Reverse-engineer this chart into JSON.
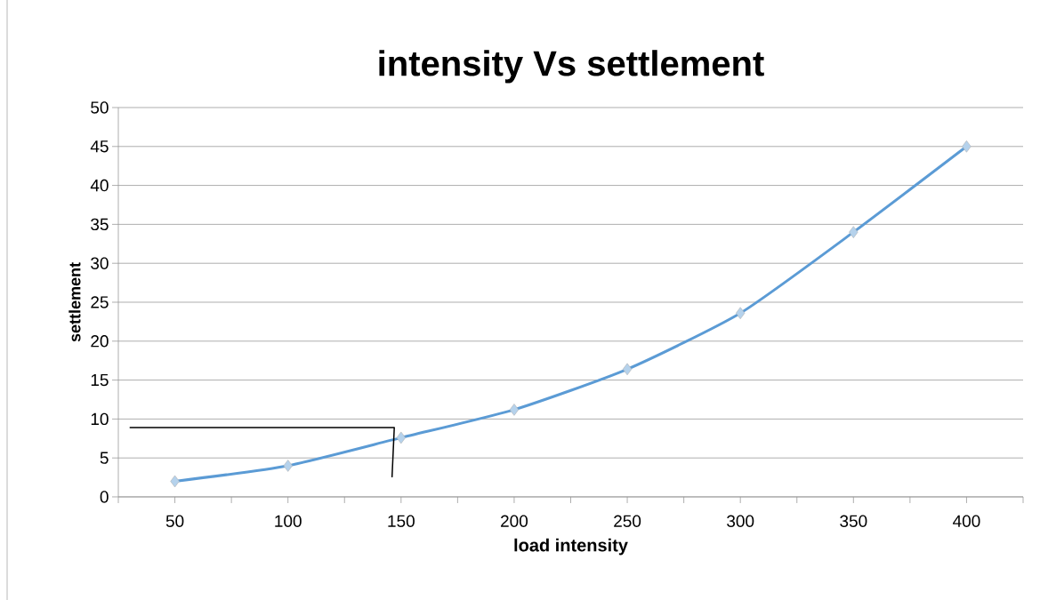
{
  "chart_data": {
    "type": "line",
    "title": "intensity Vs settlement",
    "xlabel": "load intensity",
    "ylabel": "settlement",
    "series": [
      {
        "color": "#5b9bd5",
        "marker": "diamond",
        "x": [
          50,
          100,
          150,
          200,
          250,
          300,
          350,
          400
        ],
        "values": [
          2,
          4,
          7.6,
          11.2,
          16.4,
          23.6,
          34,
          45
        ]
      },
      {
        "color": "#000000",
        "marker": "none",
        "x": [
          30,
          147,
          146
        ],
        "values": [
          8.9,
          8.9,
          2.5
        ]
      }
    ],
    "xlim": [
      25,
      425
    ],
    "xticks": [
      {
        "value": 25,
        "label": null
      },
      50,
      {
        "value": 75,
        "label": null
      },
      100,
      {
        "value": 125,
        "label": null
      },
      150,
      {
        "value": 175,
        "label": null
      },
      200,
      {
        "value": 225,
        "label": null
      },
      250,
      {
        "value": 275,
        "label": null
      },
      300,
      {
        "value": 325,
        "label": null
      },
      350,
      {
        "value": 375,
        "label": null
      },
      400,
      {
        "value": 425,
        "label": null
      }
    ],
    "ylim": [
      0,
      50
    ],
    "yticks": [
      0,
      5,
      10,
      15,
      20,
      25,
      30,
      35,
      40,
      45,
      50
    ],
    "grid": "y",
    "line_style": "solid"
  }
}
